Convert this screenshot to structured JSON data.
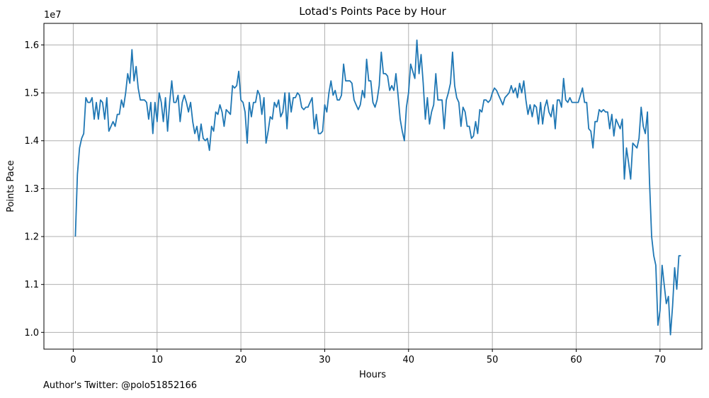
{
  "chart_data": {
    "type": "line",
    "title": "Lotad's Points Pace by Hour",
    "xlabel": "Hours",
    "ylabel": "Points Pace",
    "offset_label": "1e7",
    "xlim": [
      -3.5,
      75.0
    ],
    "ylim": [
      9.65,
      16.45
    ],
    "xticks": [
      0,
      10,
      20,
      30,
      40,
      50,
      60,
      70
    ],
    "yticks": [
      10.0,
      11.0,
      12.0,
      13.0,
      14.0,
      15.0,
      16.0
    ],
    "ytick_labels": [
      "1.0",
      "1.1",
      "1.2",
      "1.3",
      "1.4",
      "1.5",
      "1.6"
    ],
    "grid": true,
    "line_color": "#1f77b4",
    "series": [
      {
        "x_start": 0.25,
        "x_step": 0.25,
        "values": [
          12.0,
          13.3,
          13.85,
          14.05,
          14.15,
          14.9,
          14.8,
          14.8,
          14.9,
          14.45,
          14.8,
          14.45,
          14.85,
          14.8,
          14.45,
          14.9,
          14.2,
          14.3,
          14.4,
          14.3,
          14.55,
          14.55,
          14.85,
          14.7,
          15.0,
          15.4,
          15.2,
          15.9,
          15.25,
          15.55,
          15.1,
          14.85,
          14.85,
          14.85,
          14.8,
          14.45,
          14.8,
          14.15,
          14.8,
          14.4,
          15.0,
          14.8,
          14.4,
          14.9,
          14.2,
          14.8,
          15.25,
          14.8,
          14.8,
          14.95,
          14.4,
          14.8,
          14.95,
          14.8,
          14.6,
          14.8,
          14.4,
          14.15,
          14.3,
          14.0,
          14.35,
          14.05,
          14.0,
          14.05,
          13.8,
          14.3,
          14.2,
          14.6,
          14.55,
          14.75,
          14.6,
          14.3,
          14.65,
          14.6,
          14.55,
          15.15,
          15.1,
          15.15,
          15.45,
          14.85,
          14.8,
          14.6,
          13.95,
          14.8,
          14.5,
          14.8,
          14.8,
          15.05,
          14.95,
          14.55,
          14.9,
          13.95,
          14.2,
          14.5,
          14.45,
          14.8,
          14.7,
          14.85,
          14.5,
          14.6,
          15.0,
          14.25,
          15.0,
          14.6,
          14.9,
          14.9,
          15.0,
          14.95,
          14.7,
          14.65,
          14.7,
          14.7,
          14.8,
          14.9,
          14.25,
          14.55,
          14.15,
          14.15,
          14.2,
          14.75,
          14.6,
          15.0,
          15.25,
          14.95,
          15.05,
          14.85,
          14.85,
          14.95,
          15.6,
          15.25,
          15.25,
          15.25,
          15.2,
          14.85,
          14.75,
          14.65,
          14.75,
          15.05,
          14.9,
          15.7,
          15.25,
          15.25,
          14.8,
          14.7,
          14.85,
          15.15,
          15.85,
          15.4,
          15.4,
          15.35,
          15.05,
          15.15,
          15.05,
          15.4,
          14.95,
          14.45,
          14.2,
          14.0,
          14.7,
          15.0,
          15.6,
          15.45,
          15.3,
          16.1,
          15.4,
          15.8,
          15.2,
          14.45,
          14.9,
          14.35,
          14.6,
          14.75,
          15.4,
          14.85,
          14.85,
          14.85,
          14.25,
          14.85,
          15.0,
          15.2,
          15.85,
          15.15,
          14.9,
          14.8,
          14.3,
          14.7,
          14.6,
          14.3,
          14.3,
          14.05,
          14.1,
          14.4,
          14.15,
          14.65,
          14.6,
          14.85,
          14.85,
          14.8,
          14.85,
          15.0,
          15.1,
          15.05,
          14.95,
          14.85,
          14.75,
          14.9,
          14.95,
          15.0,
          15.15,
          15.0,
          15.1,
          14.9,
          15.2,
          15.0,
          15.25,
          14.85,
          14.55,
          14.75,
          14.5,
          14.75,
          14.7,
          14.35,
          14.8,
          14.35,
          14.7,
          14.85,
          14.6,
          14.5,
          14.75,
          14.25,
          14.85,
          14.85,
          14.7,
          15.3,
          14.85,
          14.8,
          14.9,
          14.8,
          14.8,
          14.8,
          14.8,
          14.95,
          15.1,
          14.8,
          14.8,
          14.25,
          14.2,
          13.85,
          14.4,
          14.4,
          14.65,
          14.6,
          14.65,
          14.6,
          14.6,
          14.25,
          14.55,
          14.1,
          14.45,
          14.35,
          14.25,
          14.45,
          13.2,
          13.85,
          13.55,
          13.2,
          13.95,
          13.9,
          13.85,
          14.05,
          14.7,
          14.3,
          14.15,
          14.6,
          13.15,
          12.0,
          11.6,
          11.4,
          10.15,
          10.45,
          11.4,
          11.0,
          10.6,
          10.75,
          9.95,
          10.55,
          11.35,
          10.9,
          11.6,
          11.6
        ]
      }
    ]
  },
  "footnote": "Author's Twitter: @polo51852166"
}
